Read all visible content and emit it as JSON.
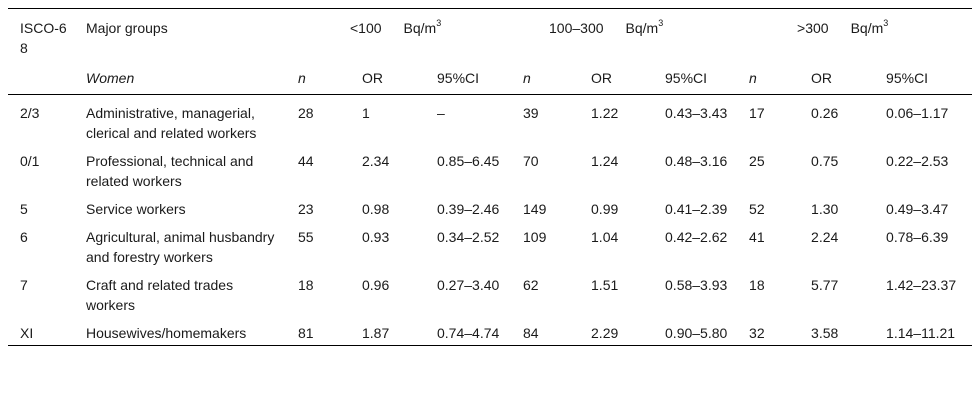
{
  "table": {
    "header": {
      "isco": "ISCO-68",
      "major_groups": "Major groups",
      "women": "Women",
      "ranges": [
        {
          "label": "<100",
          "unit": "Bq/m",
          "exp": "3"
        },
        {
          "label": "100–300",
          "unit": "Bq/m",
          "exp": "3"
        },
        {
          "label": ">300",
          "unit": "Bq/m",
          "exp": "3"
        }
      ],
      "sub": {
        "n": "n",
        "or": "OR",
        "ci": "95%CI"
      }
    },
    "rows": [
      {
        "code": "2/3",
        "group": "Administrative, managerial, clerical and related workers",
        "cells": [
          "28",
          "1",
          "–",
          "39",
          "1.22",
          "0.43–3.43",
          "17",
          "0.26",
          "0.06–1.17"
        ]
      },
      {
        "code": "0/1",
        "group": "Professional, technical and related workers",
        "cells": [
          "44",
          "2.34",
          "0.85–6.45",
          "70",
          "1.24",
          "0.48–3.16",
          "25",
          "0.75",
          "0.22–2.53"
        ]
      },
      {
        "code": "5",
        "group": "Service workers",
        "cells": [
          "23",
          "0.98",
          "0.39–2.46",
          "149",
          "0.99",
          "0.41–2.39",
          "52",
          "1.30",
          "0.49–3.47"
        ]
      },
      {
        "code": "6",
        "group": "Agricultural, animal husbandry and forestry workers",
        "cells": [
          "55",
          "0.93",
          "0.34–2.52",
          "109",
          "1.04",
          "0.42–2.62",
          "41",
          "2.24",
          "0.78–6.39"
        ]
      },
      {
        "code": "7",
        "group": "Craft and related trades workers",
        "cells": [
          "18",
          "0.96",
          "0.27–3.40",
          "62",
          "1.51",
          "0.58–3.93",
          "18",
          "5.77",
          "1.42–23.37"
        ]
      },
      {
        "code": "XI",
        "group": "Housewives/homemakers",
        "cells": [
          "81",
          "1.87",
          "0.74–4.74",
          "84",
          "2.29",
          "0.90–5.80",
          "32",
          "3.58",
          "1.14–11.21"
        ]
      }
    ]
  }
}
